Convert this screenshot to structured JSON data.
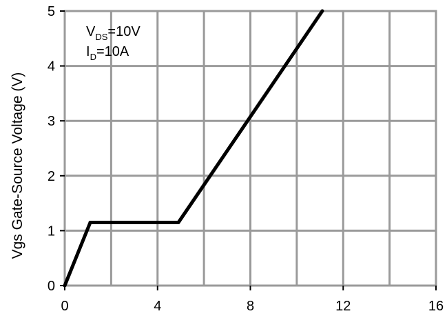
{
  "chart_data": {
    "type": "line",
    "title": "",
    "xlabel": "",
    "ylabel": "Vgs Gate-Source Voltage (V)",
    "xlim": [
      0,
      16
    ],
    "ylim": [
      0,
      5
    ],
    "xticks": [
      "0",
      "4",
      "8",
      "12",
      "16"
    ],
    "yticks": [
      "0",
      "1",
      "2",
      "3",
      "4",
      "5"
    ],
    "grid": true,
    "annotations": [
      {
        "main": "V",
        "sub": "DS",
        "rest": "=10V"
      },
      {
        "main": "I",
        "sub": "D",
        "rest": "=10A"
      }
    ],
    "series": [
      {
        "x": [
          0,
          1.1,
          4.9,
          11.1
        ],
        "y": [
          0,
          1.15,
          1.15,
          5.0
        ],
        "color": "#000000"
      }
    ]
  }
}
